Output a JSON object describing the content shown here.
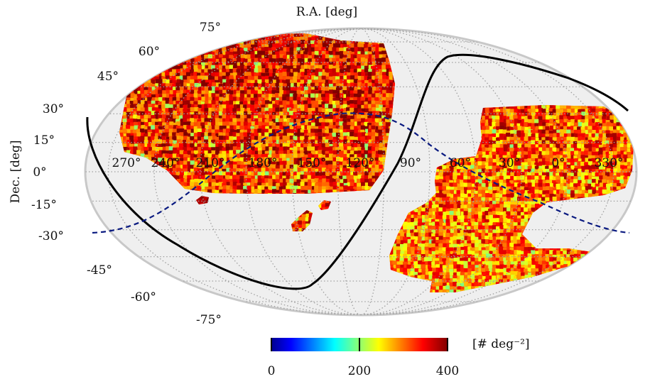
{
  "chart_data": {
    "type": "heatmap",
    "projection": "mollweide",
    "title": "",
    "xlabel": "R.A. [deg]",
    "ylabel": "Dec. [deg]",
    "ra_tick_labels": [
      "270°",
      "240°",
      "210°",
      "180°",
      "150°",
      "120°",
      "90°",
      "60°",
      "30°",
      "0°",
      "330°"
    ],
    "dec_tick_labels": [
      "75°",
      "60°",
      "45°",
      "30°",
      "15°",
      "0°",
      "-15°",
      "-30°",
      "-45°",
      "-60°",
      "-75°"
    ],
    "colorbar": {
      "label": "[# deg⁻²]",
      "range": [
        0,
        400
      ],
      "tick_labels": [
        "0",
        "200",
        "400"
      ],
      "colormap": "jet"
    },
    "grid": true,
    "density_typical_range": [
      250,
      400
    ],
    "regions": [
      {
        "region": "northern cap",
        "ra_range": [
          100,
          280
        ],
        "dec_range": [
          -5,
          75
        ]
      },
      {
        "region": "southern footprint",
        "ra_range": [
          300,
          60
        ],
        "dec_range": [
          -65,
          30
        ]
      },
      {
        "region": "small southern patches",
        "ra_range": [
          140,
          160
        ],
        "dec_range": [
          -30,
          -15
        ]
      }
    ],
    "overlays": [
      {
        "name": "galactic plane",
        "style": "solid",
        "color": "#000000"
      },
      {
        "name": "ecliptic",
        "style": "dashed",
        "color": "#0a1a80"
      }
    ]
  }
}
